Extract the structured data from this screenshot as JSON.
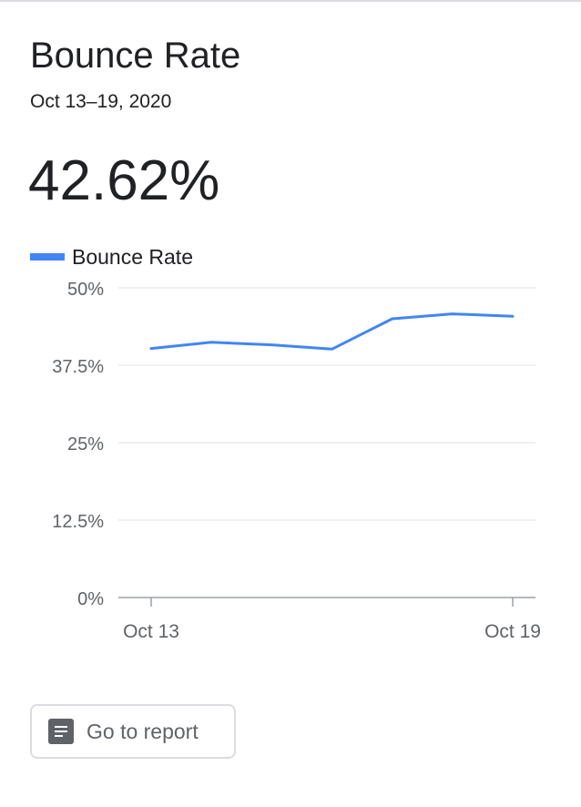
{
  "card": {
    "title": "Bounce Rate",
    "date_range": "Oct 13–19, 2020",
    "metric_value": "42.62%",
    "button_label": "Go to report",
    "button_icon": "report-icon"
  },
  "colors": {
    "series": "#4285f4",
    "grid": "#e0e0e0",
    "axis": "#9aa0a6",
    "tick_text": "#5f6368"
  },
  "chart_data": {
    "type": "line",
    "title": "",
    "xlabel": "",
    "ylabel": "",
    "x": [
      "Oct 13",
      "Oct 14",
      "Oct 15",
      "Oct 16",
      "Oct 17",
      "Oct 18",
      "Oct 19"
    ],
    "x_tick_labels": [
      "Oct 13",
      "Oct 19"
    ],
    "y_ticks": [
      0,
      12.5,
      25,
      37.5,
      50
    ],
    "y_tick_labels": [
      "0%",
      "12.5%",
      "25%",
      "37.5%",
      "50%"
    ],
    "ylim": [
      0,
      50
    ],
    "grid": true,
    "legend": "top-left",
    "series": [
      {
        "name": "Bounce Rate",
        "values": [
          40.2,
          41.2,
          40.8,
          40.1,
          45.0,
          45.8,
          45.4
        ]
      }
    ]
  }
}
